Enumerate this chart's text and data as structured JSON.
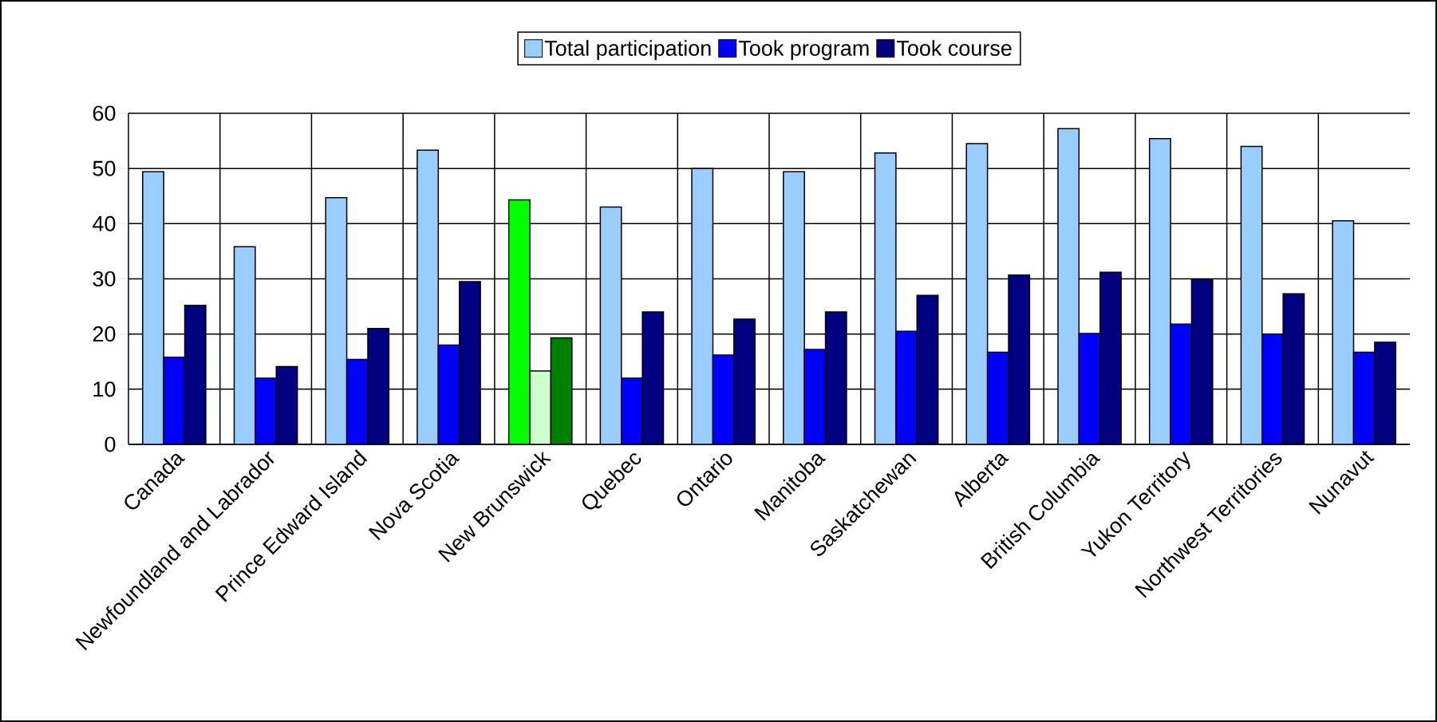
{
  "chart_data": {
    "type": "bar",
    "categories": [
      "Canada",
      "Newfoundland and Labrador",
      "Prince Edward Island",
      "Nova Scotia",
      "New Brunswick",
      "Quebec",
      "Ontario",
      "Manitoba",
      "Saskatchewan",
      "Alberta",
      "British Columbia",
      "Yukon Territory",
      "Northwest Territories",
      "Nunavut"
    ],
    "series": [
      {
        "name": "Total participation",
        "color": "#99ccff",
        "colors": [
          "#99ccff",
          "#99ccff",
          "#99ccff",
          "#99ccff",
          "#00ff00",
          "#99ccff",
          "#99ccff",
          "#99ccff",
          "#99ccff",
          "#99ccff",
          "#99ccff",
          "#99ccff",
          "#99ccff",
          "#99ccff"
        ],
        "values": [
          49.4,
          35.8,
          44.7,
          53.3,
          44.3,
          43.0,
          50.0,
          49.4,
          52.8,
          54.5,
          57.2,
          55.4,
          54.0,
          40.5
        ]
      },
      {
        "name": "Took program",
        "color": "#0000ff",
        "colors": [
          "#0000ff",
          "#0000ff",
          "#0000ff",
          "#0000ff",
          "#ccffcc",
          "#0000ff",
          "#0000ff",
          "#0000ff",
          "#0000ff",
          "#0000ff",
          "#0000ff",
          "#0000ff",
          "#0000ff",
          "#0000ff"
        ],
        "values": [
          15.8,
          12.0,
          15.4,
          18.0,
          13.3,
          12.0,
          16.2,
          17.2,
          20.5,
          16.7,
          20.1,
          21.8,
          20.0,
          16.7
        ]
      },
      {
        "name": "Took course",
        "color": "#000080",
        "colors": [
          "#000080",
          "#000080",
          "#000080",
          "#000080",
          "#008000",
          "#000080",
          "#000080",
          "#000080",
          "#000080",
          "#000080",
          "#000080",
          "#000080",
          "#000080",
          "#000080"
        ],
        "values": [
          25.2,
          14.1,
          21.0,
          29.5,
          19.3,
          24.0,
          22.7,
          24.0,
          27.0,
          30.7,
          31.2,
          29.9,
          27.3,
          18.5
        ]
      }
    ],
    "ylim": [
      0,
      60
    ],
    "yticks": [
      0,
      10,
      20,
      30,
      40,
      50,
      60
    ],
    "grid": true,
    "legend": "top"
  }
}
